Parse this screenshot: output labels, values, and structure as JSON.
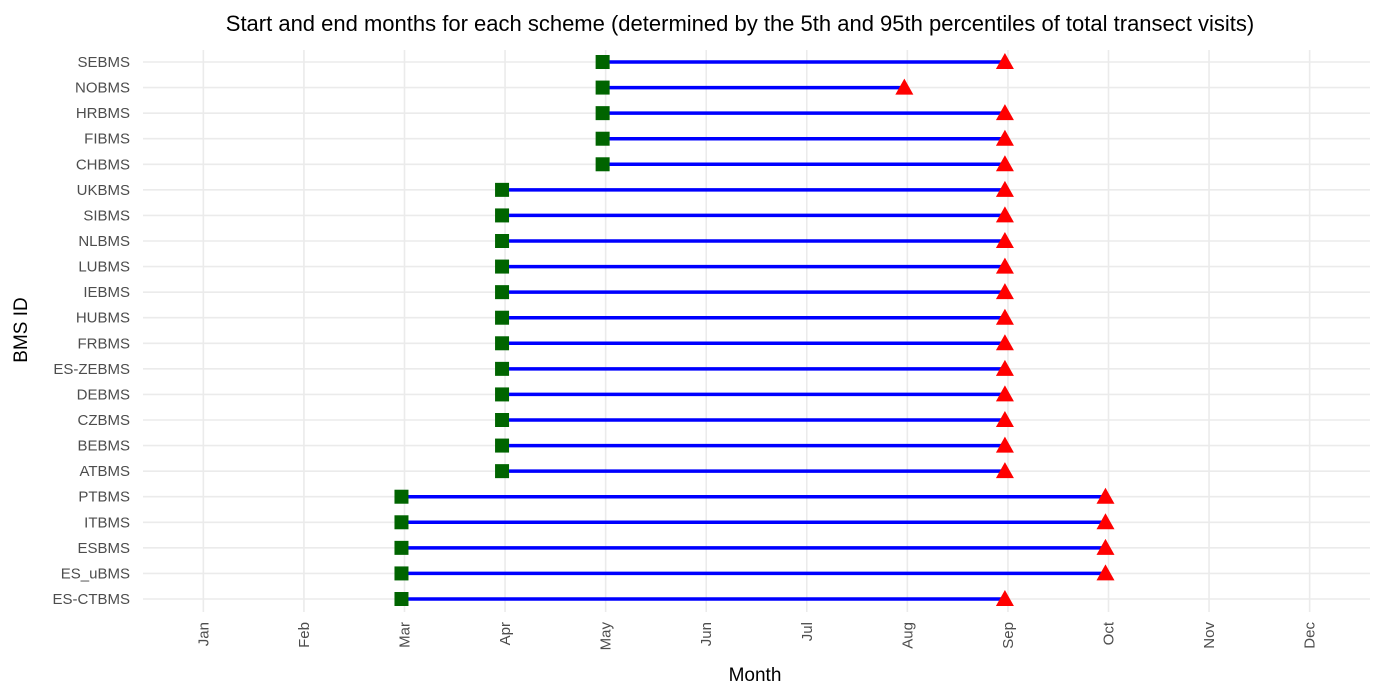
{
  "chart_data": {
    "type": "dumbbell",
    "title": "Start and end months for each scheme (determined by the 5th and 95th percentiles of total transect visits)",
    "xlabel": "Month",
    "ylabel": "BMS ID",
    "x_ticks": [
      "Jan",
      "Feb",
      "Mar",
      "Apr",
      "May",
      "Jun",
      "Jul",
      "Aug",
      "Sep",
      "Oct",
      "Nov",
      "Dec"
    ],
    "xlim": [
      0.4,
      12.6
    ],
    "grid": true,
    "legend": "none",
    "colors": {
      "segment": "#0000ff",
      "start_marker": "#006400",
      "end_marker": "#ff0000"
    },
    "markers": {
      "start": "square",
      "end": "triangle"
    },
    "rows": [
      {
        "id": "SEBMS",
        "start": 4.97,
        "end": 8.97
      },
      {
        "id": "NOBMS",
        "start": 4.97,
        "end": 7.97
      },
      {
        "id": "HRBMS",
        "start": 4.97,
        "end": 8.97
      },
      {
        "id": "FIBMS",
        "start": 4.97,
        "end": 8.97
      },
      {
        "id": "CHBMS",
        "start": 4.97,
        "end": 8.97
      },
      {
        "id": "UKBMS",
        "start": 3.97,
        "end": 8.97
      },
      {
        "id": "SIBMS",
        "start": 3.97,
        "end": 8.97
      },
      {
        "id": "NLBMS",
        "start": 3.97,
        "end": 8.97
      },
      {
        "id": "LUBMS",
        "start": 3.97,
        "end": 8.97
      },
      {
        "id": "IEBMS",
        "start": 3.97,
        "end": 8.97
      },
      {
        "id": "HUBMS",
        "start": 3.97,
        "end": 8.97
      },
      {
        "id": "FRBMS",
        "start": 3.97,
        "end": 8.97
      },
      {
        "id": "ES-ZEBMS",
        "start": 3.97,
        "end": 8.97
      },
      {
        "id": "DEBMS",
        "start": 3.97,
        "end": 8.97
      },
      {
        "id": "CZBMS",
        "start": 3.97,
        "end": 8.97
      },
      {
        "id": "BEBMS",
        "start": 3.97,
        "end": 8.97
      },
      {
        "id": "ATBMS",
        "start": 3.97,
        "end": 8.97
      },
      {
        "id": "PTBMS",
        "start": 2.97,
        "end": 9.97
      },
      {
        "id": "ITBMS",
        "start": 2.97,
        "end": 9.97
      },
      {
        "id": "ESBMS",
        "start": 2.97,
        "end": 9.97
      },
      {
        "id": "ES_uBMS",
        "start": 2.97,
        "end": 9.97
      },
      {
        "id": "ES-CTBMS",
        "start": 2.97,
        "end": 8.97
      }
    ]
  }
}
